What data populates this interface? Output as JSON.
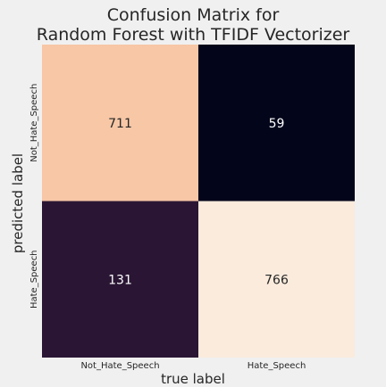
{
  "chart_data": {
    "type": "heatmap",
    "title_lines": [
      "Confusion Matrix for",
      "Random Forest with TFIDF Vectorizer"
    ],
    "xlabel": "true label",
    "ylabel": "predicted label",
    "x_categories": [
      "Not_Hate_Speech",
      "Hate_Speech"
    ],
    "y_categories": [
      "Not_Hate_Speech",
      "Hate_Speech"
    ],
    "values": [
      [
        711,
        59
      ],
      [
        131,
        766
      ]
    ],
    "colorscale": "rocket",
    "cell_colors": [
      [
        "#f7c7a6",
        "#03051a"
      ],
      [
        "#2a1634",
        "#faebdd"
      ]
    ],
    "annotation_colors": [
      [
        "#262626",
        "#ffffff"
      ],
      [
        "#ffffff",
        "#262626"
      ]
    ],
    "grid": false,
    "colorbar": false
  }
}
